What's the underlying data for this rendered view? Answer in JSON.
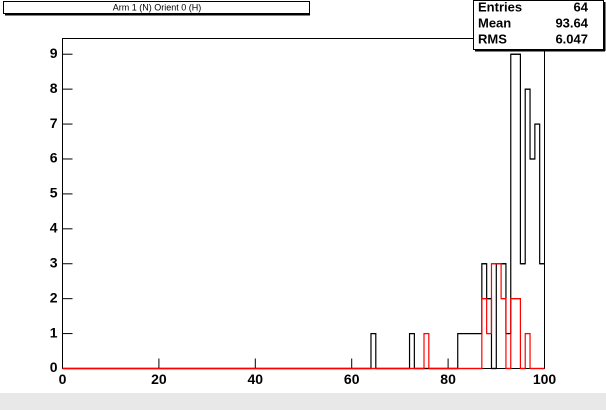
{
  "chart_data": {
    "type": "histogram",
    "title": "Arm 1 (N) Orient 0 (H)",
    "bins": [
      0,
      1,
      2,
      3,
      4,
      5,
      6,
      7,
      8,
      9,
      10,
      11,
      12,
      13,
      14,
      15,
      16,
      17,
      18,
      19,
      20,
      21,
      22,
      23,
      24,
      25,
      26,
      27,
      28,
      29,
      30,
      31,
      32,
      33,
      34,
      35,
      36,
      37,
      38,
      39,
      40,
      41,
      42,
      43,
      44,
      45,
      46,
      47,
      48,
      49,
      50,
      51,
      52,
      53,
      54,
      55,
      56,
      57,
      58,
      59,
      60,
      61,
      62,
      63,
      64,
      65,
      66,
      67,
      68,
      69,
      70,
      71,
      72,
      73,
      74,
      75,
      76,
      77,
      78,
      79,
      80,
      81,
      82,
      83,
      84,
      85,
      86,
      87,
      88,
      89,
      90,
      91,
      92,
      93,
      94,
      95,
      96,
      97,
      98,
      99,
      100
    ],
    "series": [
      {
        "color": "#000000",
        "values": [
          0,
          0,
          0,
          0,
          0,
          0,
          0,
          0,
          0,
          0,
          0,
          0,
          0,
          0,
          0,
          0,
          0,
          0,
          0,
          0,
          0,
          0,
          0,
          0,
          0,
          0,
          0,
          0,
          0,
          0,
          0,
          0,
          0,
          0,
          0,
          0,
          0,
          0,
          0,
          0,
          0,
          0,
          0,
          0,
          0,
          0,
          0,
          0,
          0,
          0,
          0,
          0,
          0,
          0,
          0,
          0,
          0,
          0,
          0,
          0,
          0,
          0,
          0,
          0,
          1,
          0,
          0,
          0,
          0,
          0,
          0,
          0,
          1,
          0,
          0,
          0,
          0,
          0,
          0,
          0,
          0,
          0,
          1,
          1,
          1,
          1,
          1,
          3,
          2,
          0,
          3,
          3,
          1,
          9,
          9,
          3,
          8,
          6,
          7,
          3
        ]
      },
      {
        "color": "#ff0000",
        "values": [
          0,
          0,
          0,
          0,
          0,
          0,
          0,
          0,
          0,
          0,
          0,
          0,
          0,
          0,
          0,
          0,
          0,
          0,
          0,
          0,
          0,
          0,
          0,
          0,
          0,
          0,
          0,
          0,
          0,
          0,
          0,
          0,
          0,
          0,
          0,
          0,
          0,
          0,
          0,
          0,
          0,
          0,
          0,
          0,
          0,
          0,
          0,
          0,
          0,
          0,
          0,
          0,
          0,
          0,
          0,
          0,
          0,
          0,
          0,
          0,
          0,
          0,
          0,
          0,
          0,
          0,
          0,
          0,
          0,
          0,
          0,
          0,
          0,
          0,
          0,
          1,
          0,
          0,
          0,
          0,
          0,
          0,
          0,
          0,
          0,
          0,
          0,
          2,
          1,
          3,
          3,
          2,
          0,
          2,
          2,
          0,
          1,
          0,
          0,
          0
        ]
      }
    ],
    "xlim": [
      0,
      100
    ],
    "ylim": [
      0,
      9.45
    ],
    "xticks": [
      0,
      20,
      40,
      60,
      80,
      100
    ],
    "yticks": [
      0,
      1,
      2,
      3,
      4,
      5,
      6,
      7,
      8,
      9
    ],
    "stats": {
      "labels": [
        "Entries",
        "Mean",
        "RMS"
      ],
      "values": [
        64,
        93.64,
        6.047
      ]
    }
  }
}
